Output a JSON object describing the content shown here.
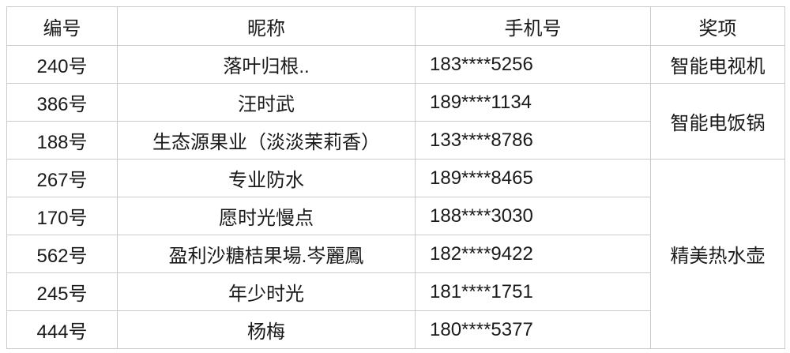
{
  "table": {
    "headers": [
      {
        "label": "编号"
      },
      {
        "label": "昵称"
      },
      {
        "label": "手机号"
      },
      {
        "label": "奖项"
      }
    ],
    "rows": [
      {
        "id": "240号",
        "nickname": "落叶归根..",
        "phone": "183****5256"
      },
      {
        "id": "386号",
        "nickname": "汪时武",
        "phone": "189****1134"
      },
      {
        "id": "188号",
        "nickname": "生态源果业（淡淡茉莉香）",
        "phone": "133****8786"
      },
      {
        "id": "267号",
        "nickname": "专业防水",
        "phone": "189****8465"
      },
      {
        "id": "170号",
        "nickname": "愿时光慢点",
        "phone": "188****3030"
      },
      {
        "id": "562号",
        "nickname": "盈利沙糖桔果場.岑麗鳳",
        "phone": "182****9422"
      },
      {
        "id": "245号",
        "nickname": "年少时光",
        "phone": "181****1751"
      },
      {
        "id": "444号",
        "nickname": "杨梅",
        "phone": "180****5377"
      }
    ],
    "prizes": [
      {
        "label": "智能电视机",
        "rowspan": 1
      },
      {
        "label": "智能电饭锅",
        "rowspan": 2
      },
      {
        "label": "精美热水壶",
        "rowspan": 5
      }
    ],
    "colors": {
      "border": "#cbcbcb",
      "text": "#1a1a1a",
      "background": "#ffffff"
    }
  }
}
